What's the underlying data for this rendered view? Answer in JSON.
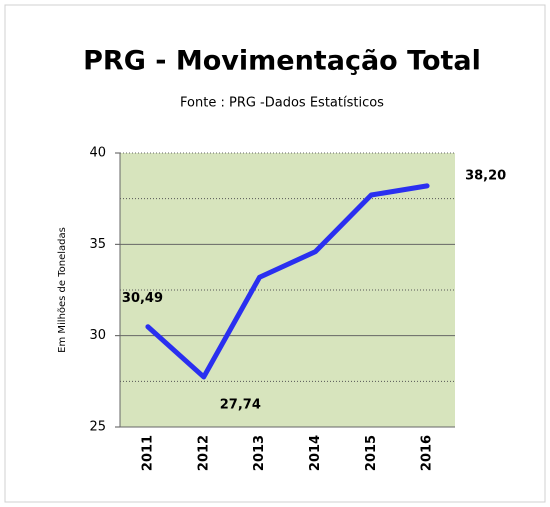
{
  "chart_data": {
    "type": "line",
    "title": "PRG - Movimentação Total",
    "subtitle": "Fonte : PRG -Dados Estatísticos",
    "y_label": "Em Milhões de Toneladas",
    "categories": [
      "2011",
      "2012",
      "2013",
      "2014",
      "2015",
      "2016"
    ],
    "series": [
      {
        "name": "Movimentação Total",
        "color": "#2a2ff0",
        "values": [
          30.49,
          27.74,
          33.2,
          34.6,
          37.7,
          38.2
        ],
        "value_labels": [
          "30,49",
          "27,74",
          null,
          null,
          null,
          "38,20"
        ]
      }
    ],
    "ylim": [
      25,
      40
    ],
    "yticks": [
      25,
      30,
      35,
      40
    ],
    "minor_yticks": [
      27.5,
      32.5,
      37.5
    ],
    "grid": true,
    "plot_background": "#d7e4bd"
  }
}
